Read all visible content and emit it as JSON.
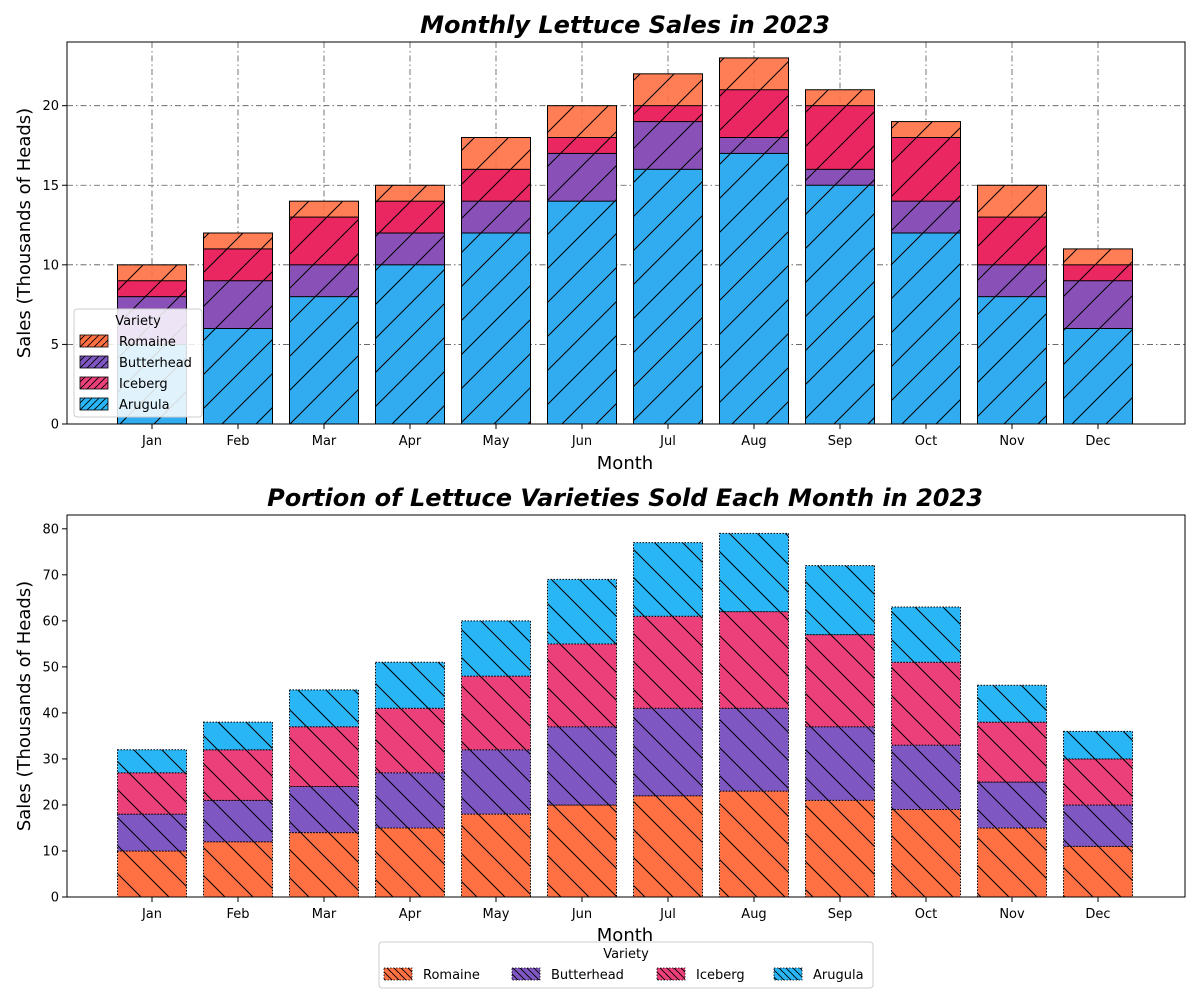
{
  "chart_data": [
    {
      "type": "bar",
      "title": "Monthly Lettuce Sales in 2023",
      "xlabel": "Month",
      "ylabel": "Sales (Thousands of Heads)",
      "ylim": [
        0,
        24
      ],
      "yticks": [
        0,
        5,
        10,
        15,
        20
      ],
      "grid": true,
      "legend": {
        "title": "Variety",
        "position": "lower-left",
        "entries": [
          "Romaine",
          "Butterhead",
          "Iceberg",
          "Arugula"
        ]
      },
      "categories": [
        "Jan",
        "Feb",
        "Mar",
        "Apr",
        "May",
        "Jun",
        "Jul",
        "Aug",
        "Sep",
        "Oct",
        "Nov",
        "Dec"
      ],
      "series": [
        {
          "name": "Romaine",
          "color": "#ff7043",
          "values": [
            10,
            12,
            14,
            15,
            18,
            20,
            22,
            23,
            21,
            19,
            15,
            11
          ]
        },
        {
          "name": "Iceberg",
          "color": "#e91e63",
          "values": [
            9,
            11,
            13,
            14,
            16,
            18,
            20,
            21,
            20,
            18,
            13,
            10
          ]
        },
        {
          "name": "Butterhead",
          "color": "#7e57c2",
          "values": [
            8,
            9,
            10,
            12,
            14,
            17,
            19,
            18,
            16,
            14,
            10,
            9
          ]
        },
        {
          "name": "Arugula",
          "color": "#29b6f6",
          "values": [
            5,
            6,
            8,
            10,
            12,
            14,
            16,
            17,
            15,
            12,
            8,
            6
          ]
        }
      ]
    },
    {
      "type": "bar",
      "stacked": true,
      "title": "Portion of Lettuce Varieties Sold Each Month in 2023",
      "xlabel": "Month",
      "ylabel": "Sales (Thousands of Heads)",
      "ylim": [
        0,
        83
      ],
      "yticks": [
        0,
        10,
        20,
        30,
        40,
        50,
        60,
        70,
        80
      ],
      "grid": false,
      "legend": {
        "title": "Variety",
        "position": "bottom-center",
        "entries": [
          "Romaine",
          "Butterhead",
          "Iceberg",
          "Arugula"
        ]
      },
      "categories": [
        "Jan",
        "Feb",
        "Mar",
        "Apr",
        "May",
        "Jun",
        "Jul",
        "Aug",
        "Sep",
        "Oct",
        "Nov",
        "Dec"
      ],
      "series": [
        {
          "name": "Romaine",
          "color": "#ff7043",
          "values": [
            10,
            12,
            14,
            15,
            18,
            20,
            22,
            23,
            21,
            19,
            15,
            11
          ]
        },
        {
          "name": "Butterhead",
          "color": "#7e57c2",
          "values": [
            8,
            9,
            10,
            12,
            14,
            17,
            19,
            18,
            16,
            14,
            10,
            9
          ]
        },
        {
          "name": "Iceberg",
          "color": "#ec407a",
          "values": [
            9,
            11,
            13,
            14,
            16,
            18,
            20,
            21,
            20,
            18,
            13,
            10
          ]
        },
        {
          "name": "Arugula",
          "color": "#29b6f6",
          "values": [
            5,
            6,
            8,
            10,
            12,
            14,
            16,
            17,
            15,
            12,
            8,
            6
          ]
        }
      ]
    }
  ]
}
